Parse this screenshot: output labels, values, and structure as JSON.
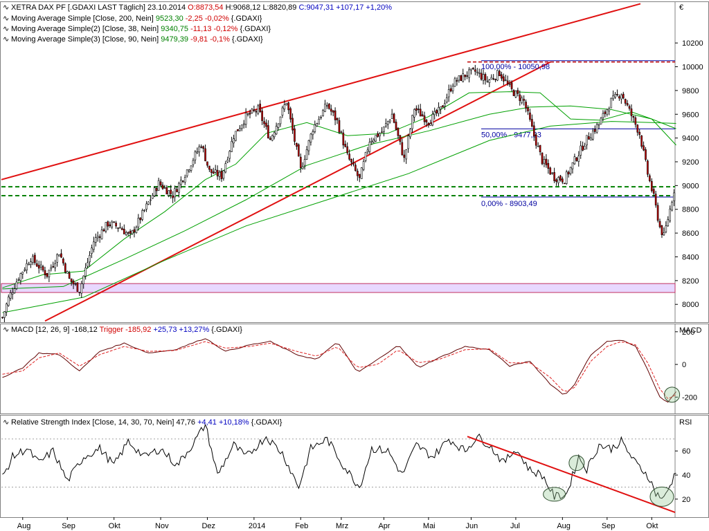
{
  "header": {
    "title": "XETRA DAX PF [.GDAXI LAST Täglich] 23.10.2014",
    "open": "O:8873,54",
    "high": "H:9068,12",
    "low": "L:8820,89",
    "close": "C:9047,31 +107,17 +1,20%",
    "ma1": {
      "label": "Moving Average Simple [Close, 200, Nein]",
      "value": "9523,30",
      "change": "-2,25 -0,02%",
      "suffix": "{.GDAXI}"
    },
    "ma2": {
      "label": "Moving Average Simple(2) [Close, 38, Nein]",
      "value": "9340,75",
      "change": "-11,13 -0,12%",
      "suffix": "{.GDAXI}"
    },
    "ma3": {
      "label": "Moving Average Simple(3) [Close, 90, Nein]",
      "value": "9479,39",
      "change": "-9,81 -0,1%",
      "suffix": "{.GDAXI}"
    }
  },
  "macd_header": {
    "label": "MACD [12, 26, 9]",
    "value": "-168,12",
    "trigger": "Trigger -185,92",
    "change": "+25,73 +13,27%",
    "suffix": "{.GDAXI}"
  },
  "rsi_header": {
    "label": "Relative Strength Index [Close, 14, 30, 70, Nein]",
    "value": "47,76",
    "change": "+4,41 +10,18%",
    "suffix": "{.GDAXI}"
  },
  "currency": "€",
  "colors": {
    "up": "#ffffff",
    "down": "#c00000",
    "ma": "#00a000",
    "trend": "#e01010",
    "fib": "#0000a0",
    "support": "#008000",
    "zone": "#e8d8ff"
  },
  "chart_data": [
    {
      "type": "candlestick",
      "title": "XETRA DAX PF [.GDAXI LAST Täglich] 23.10.2014",
      "ylim": [
        7850,
        10550
      ],
      "yticks": [
        8000,
        8200,
        8400,
        8600,
        8800,
        9000,
        9200,
        9400,
        9600,
        9800,
        10000,
        10200
      ],
      "ytick_labels": [
        "8000",
        "8200",
        "8400",
        "8600",
        "8800",
        "9000",
        "9200",
        "9400",
        "9600",
        "9800",
        "10000",
        "10200"
      ],
      "x_labels": [
        "Aug",
        "Sep",
        "Okt",
        "Nov",
        "Dez",
        "2014",
        "Feb",
        "Mrz",
        "Apr",
        "Mai",
        "Jun",
        "Jul",
        "Aug",
        "Sep",
        "Okt"
      ],
      "x_label_index": [
        10,
        32,
        55,
        78,
        101,
        124,
        147,
        167,
        188,
        210,
        231,
        253,
        276,
        298,
        320
      ],
      "n_bars": 332,
      "close_path": [
        [
          0,
          7890
        ],
        [
          3,
          8050
        ],
        [
          8,
          8230
        ],
        [
          14,
          8390
        ],
        [
          22,
          8250
        ],
        [
          28,
          8440
        ],
        [
          33,
          8210
        ],
        [
          38,
          8120
        ],
        [
          45,
          8530
        ],
        [
          52,
          8680
        ],
        [
          58,
          8650
        ],
        [
          63,
          8570
        ],
        [
          70,
          8790
        ],
        [
          77,
          9020
        ],
        [
          84,
          8920
        ],
        [
          91,
          9130
        ],
        [
          98,
          9350
        ],
        [
          102,
          9120
        ],
        [
          108,
          9080
        ],
        [
          114,
          9420
        ],
        [
          120,
          9580
        ],
        [
          126,
          9640
        ],
        [
          132,
          9390
        ],
        [
          140,
          9710
        ],
        [
          147,
          9130
        ],
        [
          153,
          9480
        ],
        [
          160,
          9680
        ],
        [
          165,
          9540
        ],
        [
          170,
          9250
        ],
        [
          176,
          9050
        ],
        [
          181,
          9380
        ],
        [
          187,
          9450
        ],
        [
          192,
          9600
        ],
        [
          198,
          9220
        ],
        [
          203,
          9650
        ],
        [
          210,
          9540
        ],
        [
          216,
          9640
        ],
        [
          222,
          9860
        ],
        [
          228,
          9930
        ],
        [
          233,
          9960
        ],
        [
          239,
          9880
        ],
        [
          245,
          9950
        ],
        [
          251,
          9800
        ],
        [
          257,
          9710
        ],
        [
          262,
          9420
        ],
        [
          266,
          9210
        ],
        [
          272,
          9070
        ],
        [
          277,
          9050
        ],
        [
          282,
          9210
        ],
        [
          288,
          9390
        ],
        [
          294,
          9520
        ],
        [
          300,
          9710
        ],
        [
          305,
          9780
        ],
        [
          310,
          9590
        ],
        [
          314,
          9440
        ],
        [
          318,
          9100
        ],
        [
          321,
          8900
        ],
        [
          324,
          8650
        ],
        [
          326,
          8570
        ],
        [
          329,
          8800
        ],
        [
          332,
          9047
        ]
      ],
      "series": [
        {
          "name": "Moving Average Simple [Close, 200, Nein]",
          "points": [
            [
              0,
              7930
            ],
            [
              40,
              8060
            ],
            [
              80,
              8370
            ],
            [
              120,
              8660
            ],
            [
              160,
              8880
            ],
            [
              200,
              9100
            ],
            [
              240,
              9380
            ],
            [
              270,
              9500
            ],
            [
              300,
              9540
            ],
            [
              320,
              9530
            ],
            [
              332,
              9523
            ]
          ]
        },
        {
          "name": "Moving Average Simple(2) [Close, 38, Nein]",
          "points": [
            [
              0,
              8140
            ],
            [
              20,
              8250
            ],
            [
              40,
              8280
            ],
            [
              60,
              8550
            ],
            [
              80,
              8780
            ],
            [
              100,
              9050
            ],
            [
              115,
              9180
            ],
            [
              130,
              9440
            ],
            [
              150,
              9530
            ],
            [
              170,
              9420
            ],
            [
              190,
              9440
            ],
            [
              210,
              9580
            ],
            [
              230,
              9780
            ],
            [
              250,
              9790
            ],
            [
              265,
              9780
            ],
            [
              280,
              9560
            ],
            [
              295,
              9550
            ],
            [
              310,
              9620
            ],
            [
              320,
              9560
            ],
            [
              332,
              9340
            ]
          ]
        },
        {
          "name": "Moving Average Simple(3) [Close, 90, Nein]",
          "points": [
            [
              0,
              8130
            ],
            [
              30,
              8150
            ],
            [
              60,
              8380
            ],
            [
              90,
              8620
            ],
            [
              120,
              8880
            ],
            [
              150,
              9170
            ],
            [
              180,
              9340
            ],
            [
              210,
              9460
            ],
            [
              240,
              9600
            ],
            [
              260,
              9660
            ],
            [
              280,
              9670
            ],
            [
              300,
              9640
            ],
            [
              320,
              9560
            ],
            [
              332,
              9479
            ]
          ]
        }
      ],
      "fibonacci": [
        {
          "label": "100,00% - 10050,98",
          "value": 10050.98
        },
        {
          "label": "50,00% - 9477,23",
          "value": 9477.23
        },
        {
          "label": "0,00% - 8903,49",
          "value": 8903.49
        }
      ],
      "support_levels": [
        8990,
        8915
      ],
      "zone": [
        8100,
        8175
      ]
    },
    {
      "type": "line",
      "title": "MACD [12, 26, 9]",
      "ylabel": "MACD",
      "ylim": [
        -300,
        250
      ],
      "yticks": [
        -200,
        0,
        200
      ],
      "ytick_labels": [
        "-200",
        "0",
        "200"
      ],
      "series": [
        {
          "name": "MACD",
          "points": [
            [
              0,
              -80
            ],
            [
              10,
              -20
            ],
            [
              18,
              70
            ],
            [
              28,
              60
            ],
            [
              38,
              -40
            ],
            [
              48,
              80
            ],
            [
              60,
              130
            ],
            [
              72,
              70
            ],
            [
              85,
              90
            ],
            [
              100,
              160
            ],
            [
              110,
              80
            ],
            [
              122,
              120
            ],
            [
              132,
              140
            ],
            [
              145,
              60
            ],
            [
              155,
              30
            ],
            [
              165,
              140
            ],
            [
              175,
              -50
            ],
            [
              185,
              30
            ],
            [
              195,
              120
            ],
            [
              205,
              -20
            ],
            [
              215,
              40
            ],
            [
              228,
              110
            ],
            [
              240,
              90
            ],
            [
              250,
              -10
            ],
            [
              260,
              20
            ],
            [
              270,
              -120
            ],
            [
              277,
              -190
            ],
            [
              282,
              -120
            ],
            [
              290,
              60
            ],
            [
              298,
              140
            ],
            [
              305,
              150
            ],
            [
              312,
              110
            ],
            [
              318,
              -30
            ],
            [
              324,
              -200
            ],
            [
              328,
              -230
            ],
            [
              332,
              -168
            ]
          ]
        },
        {
          "name": "Trigger",
          "points": [
            [
              0,
              -60
            ],
            [
              10,
              -40
            ],
            [
              18,
              40
            ],
            [
              28,
              70
            ],
            [
              38,
              -10
            ],
            [
              48,
              60
            ],
            [
              60,
              110
            ],
            [
              72,
              80
            ],
            [
              85,
              85
            ],
            [
              100,
              140
            ],
            [
              110,
              100
            ],
            [
              122,
              110
            ],
            [
              132,
              130
            ],
            [
              145,
              80
            ],
            [
              155,
              50
            ],
            [
              165,
              110
            ],
            [
              175,
              -20
            ],
            [
              185,
              0
            ],
            [
              195,
              90
            ],
            [
              205,
              10
            ],
            [
              215,
              30
            ],
            [
              228,
              90
            ],
            [
              240,
              95
            ],
            [
              250,
              10
            ],
            [
              260,
              10
            ],
            [
              270,
              -80
            ],
            [
              277,
              -170
            ],
            [
              282,
              -140
            ],
            [
              290,
              20
            ],
            [
              298,
              110
            ],
            [
              305,
              140
            ],
            [
              312,
              120
            ],
            [
              318,
              10
            ],
            [
              324,
              -150
            ],
            [
              328,
              -210
            ],
            [
              332,
              -186
            ]
          ]
        }
      ]
    },
    {
      "type": "line",
      "title": "Relative Strength Index [Close, 14, 30, 70, Nein]",
      "ylabel": "RSI",
      "ylim": [
        5,
        90
      ],
      "yticks": [
        20,
        40,
        60
      ],
      "ytick_labels": [
        "20",
        "40",
        "60"
      ],
      "series": [
        {
          "name": "RSI",
          "points": [
            [
              0,
              38
            ],
            [
              5,
              55
            ],
            [
              12,
              62
            ],
            [
              18,
              50
            ],
            [
              25,
              60
            ],
            [
              32,
              35
            ],
            [
              40,
              55
            ],
            [
              48,
              62
            ],
            [
              55,
              48
            ],
            [
              62,
              68
            ],
            [
              70,
              55
            ],
            [
              78,
              62
            ],
            [
              86,
              48
            ],
            [
              94,
              66
            ],
            [
              100,
              82
            ],
            [
              106,
              40
            ],
            [
              114,
              65
            ],
            [
              120,
              55
            ],
            [
              130,
              72
            ],
            [
              138,
              58
            ],
            [
              146,
              30
            ],
            [
              152,
              62
            ],
            [
              160,
              70
            ],
            [
              168,
              48
            ],
            [
              176,
              30
            ],
            [
              182,
              62
            ],
            [
              190,
              60
            ],
            [
              197,
              40
            ],
            [
              204,
              65
            ],
            [
              212,
              55
            ],
            [
              220,
              70
            ],
            [
              228,
              60
            ],
            [
              234,
              72
            ],
            [
              240,
              65
            ],
            [
              247,
              50
            ],
            [
              253,
              62
            ],
            [
              260,
              44
            ],
            [
              266,
              40
            ],
            [
              272,
              22
            ],
            [
              278,
              24
            ],
            [
              284,
              55
            ],
            [
              288,
              45
            ],
            [
              294,
              65
            ],
            [
              300,
              62
            ],
            [
              305,
              68
            ],
            [
              312,
              50
            ],
            [
              318,
              40
            ],
            [
              322,
              25
            ],
            [
              326,
              20
            ],
            [
              330,
              35
            ],
            [
              333,
              48
            ]
          ]
        }
      ],
      "trendline": [
        [
          0,
          87
        ],
        [
          1,
          9
        ]
      ]
    }
  ]
}
